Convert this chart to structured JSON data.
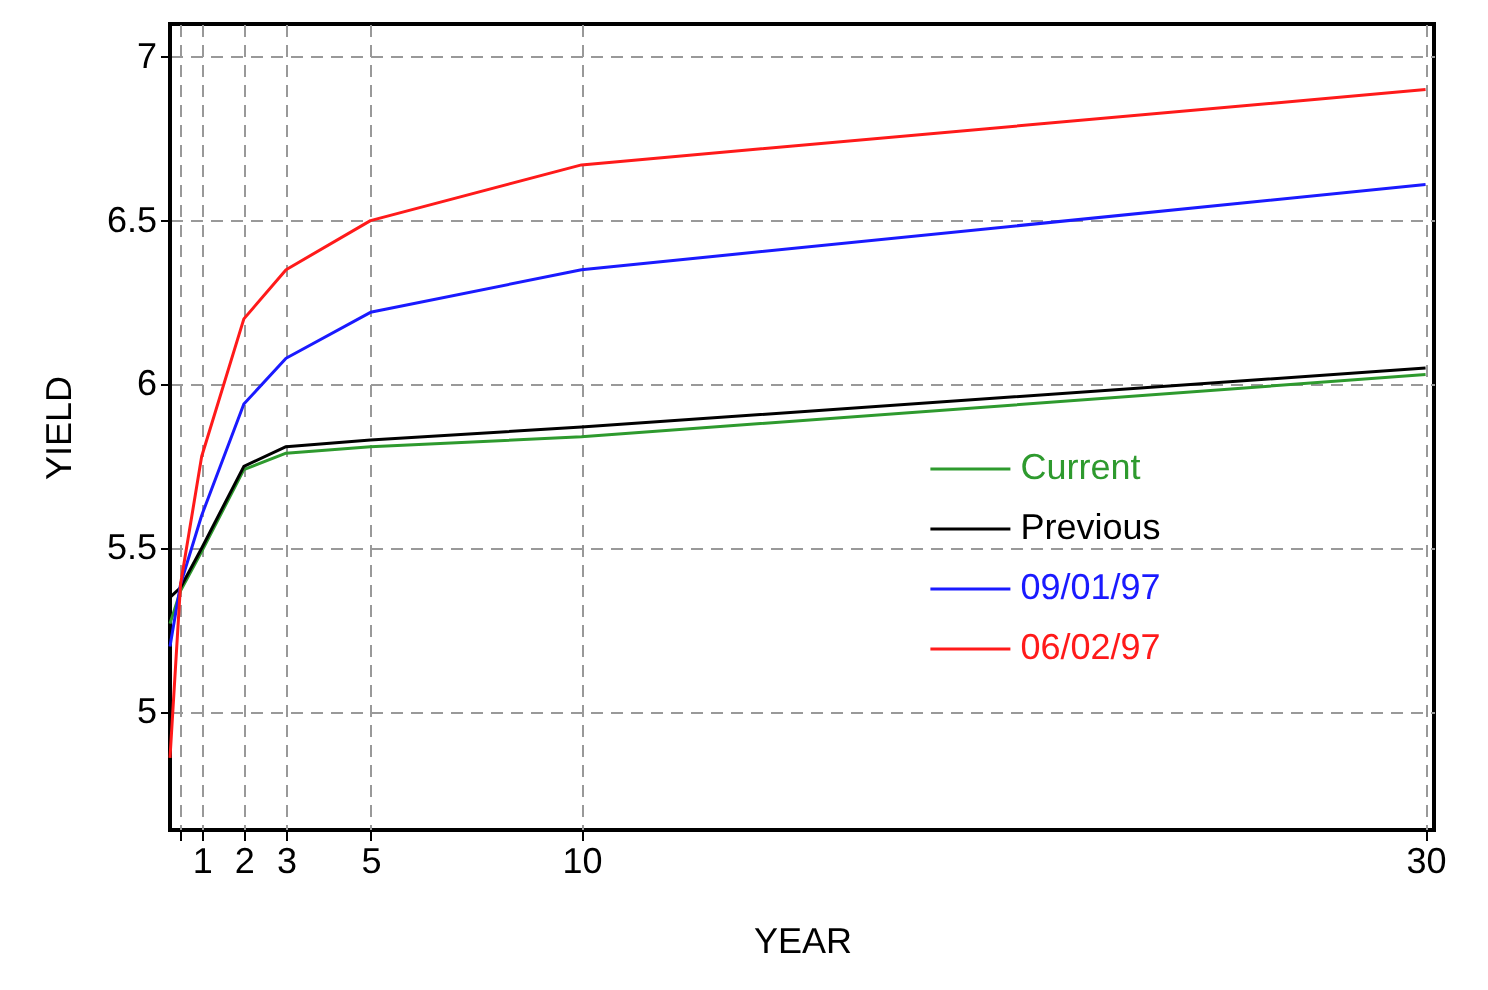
{
  "chart_data": {
    "type": "line",
    "xlabel": "YEAR",
    "ylabel": "YIELD",
    "xlim": [
      0.25,
      30.2
    ],
    "ylim": [
      4.64,
      7.1
    ],
    "xticks": [
      {
        "value": 0.5,
        "label": null
      },
      1,
      2,
      3,
      5,
      10,
      30
    ],
    "yticks": [
      5,
      5.5,
      6,
      6.5,
      7
    ],
    "x": [
      0.25,
      0.5,
      1,
      2,
      3,
      5,
      10,
      30
    ],
    "series": [
      {
        "name": "Current",
        "color": "#2e9a2e",
        "values": [
          5.27,
          5.37,
          5.49,
          5.74,
          5.79,
          5.81,
          5.84,
          6.03
        ]
      },
      {
        "name": "Previous",
        "color": "#000000",
        "values": [
          5.35,
          5.38,
          5.5,
          5.75,
          5.81,
          5.83,
          5.87,
          6.05
        ]
      },
      {
        "name": "09/01/97",
        "color": "#1a1aff",
        "values": [
          5.2,
          5.39,
          5.6,
          5.94,
          6.08,
          6.22,
          6.35,
          6.61
        ]
      },
      {
        "name": "06/02/97",
        "color": "#ff1a1a",
        "values": [
          4.86,
          5.39,
          5.78,
          6.2,
          6.35,
          6.5,
          6.67,
          6.9
        ]
      }
    ],
    "grid": true,
    "legend": "right",
    "line_style": "solid",
    "marker": "none"
  }
}
